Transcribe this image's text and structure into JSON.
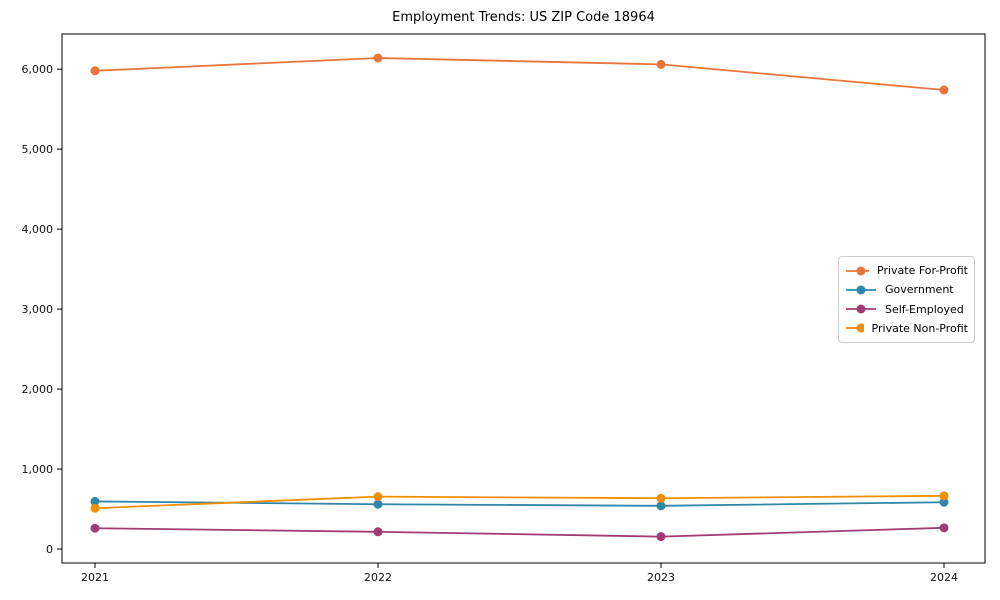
{
  "chart": {
    "title": "Employment Trends: US ZIP Code 18964"
  },
  "chart_data": {
    "type": "line",
    "title": "Employment Trends: US ZIP Code 18964",
    "xlabel": "",
    "ylabel": "",
    "grid": false,
    "legend_position": "center-right",
    "marker": "circle",
    "x": [
      2021,
      2022,
      2023,
      2024
    ],
    "x_tick_labels": [
      "2021",
      "2022",
      "2023",
      "2024"
    ],
    "y_ticks": [
      0,
      1000,
      2000,
      3000,
      4000,
      5000,
      6000
    ],
    "y_tick_labels": [
      "0",
      "1,000",
      "2,000",
      "3,000",
      "4,000",
      "5,000",
      "6,000"
    ],
    "ylim": [
      -175,
      6440
    ],
    "series": [
      {
        "name": "Private For-Profit",
        "color": "#E8763C",
        "values": [
          5980,
          6140,
          6060,
          5740
        ]
      },
      {
        "name": "Government",
        "color": "#2E86AB",
        "values": [
          595,
          560,
          540,
          585
        ]
      },
      {
        "name": "Self-Employed",
        "color": "#A23B72",
        "values": [
          260,
          215,
          155,
          265
        ]
      },
      {
        "name": "Private Non-Profit",
        "color": "#F18F01",
        "values": [
          510,
          655,
          635,
          665
        ]
      }
    ],
    "axis_color": "#000000",
    "tick_label_color": "#111111",
    "legend_border_color": "#cccccc"
  }
}
